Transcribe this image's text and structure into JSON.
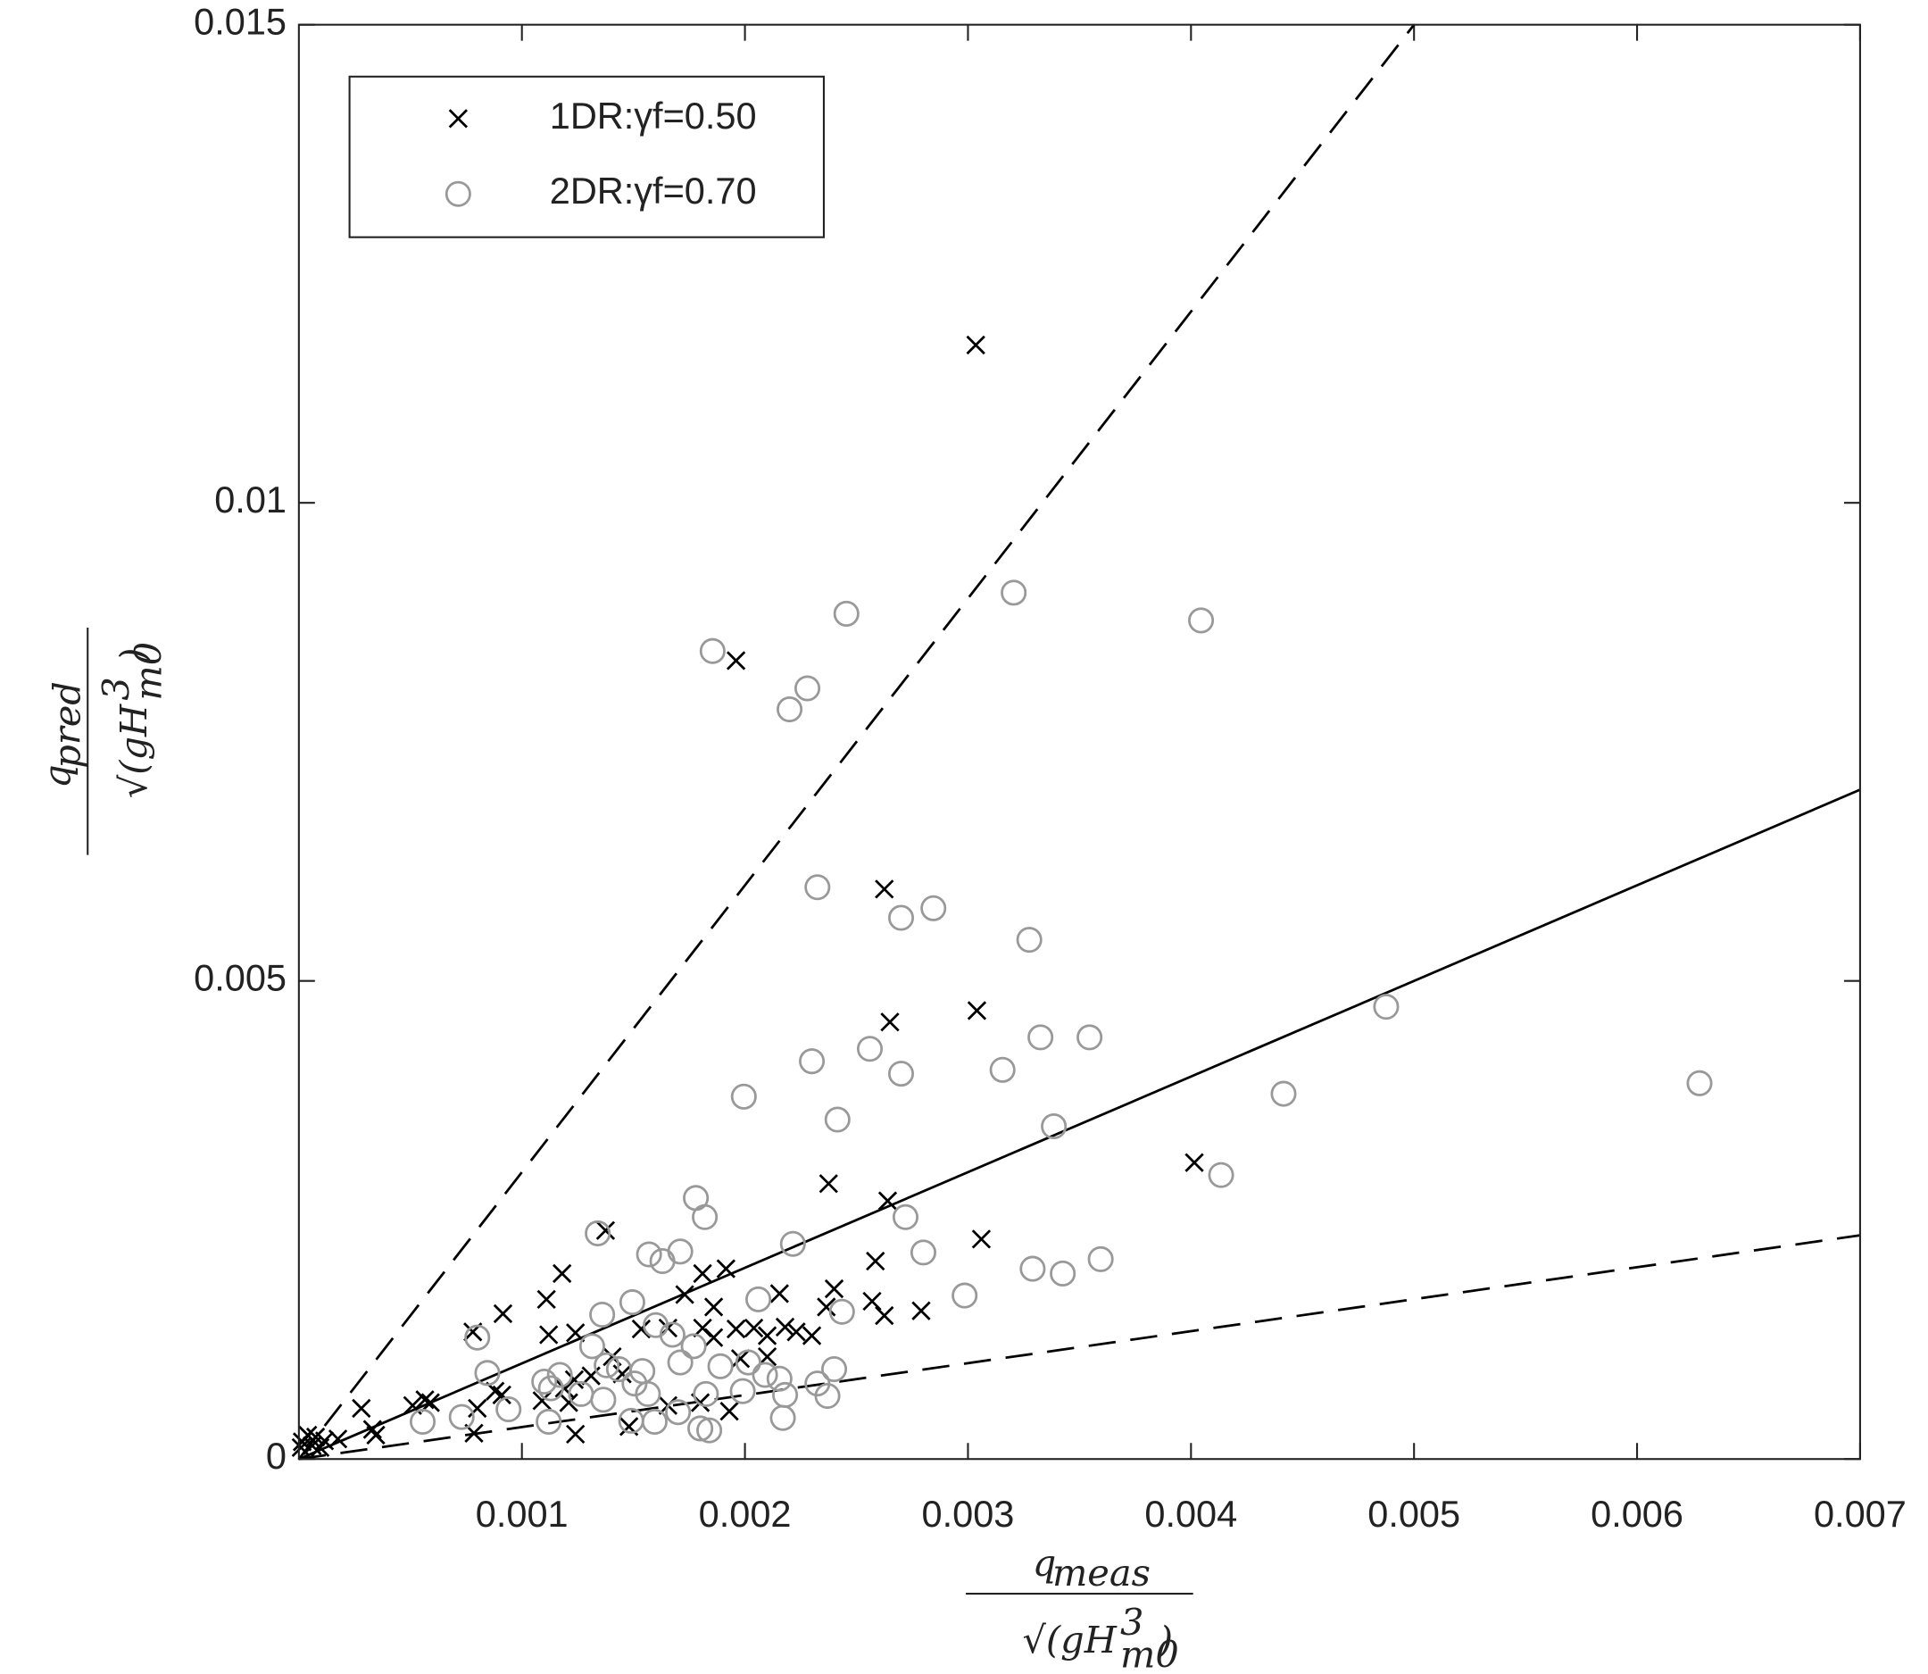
{
  "chart_data": {
    "type": "scatter",
    "xlim": [
      0,
      0.007
    ],
    "ylim": [
      0,
      0.015
    ],
    "xticks": [
      0.001,
      0.002,
      0.003,
      0.004,
      0.005,
      0.006,
      0.007
    ],
    "yticks": [
      0,
      0.005,
      0.01,
      0.015
    ],
    "legend_location": "upper left",
    "xlabel": {
      "numerator": "q",
      "numerator_sub": "meas",
      "denominator": "√(gH",
      "denominator_sup": "3",
      "denominator_sub": "m0",
      "denominator_end": ")"
    },
    "ylabel": {
      "numerator": "q",
      "numerator_sub": "pred",
      "denominator": "√(gH",
      "denominator_sup": "3",
      "denominator_sub": "m0",
      "denominator_end": ")"
    },
    "reference_lines": [
      {
        "x": [
          0,
          0.007
        ],
        "y": [
          0,
          0.007
        ],
        "style": "solid",
        "color": "#000000"
      },
      {
        "x": [
          0,
          0.005
        ],
        "y": [
          0,
          0.015
        ],
        "style": "dashed",
        "color": "#000000"
      },
      {
        "x": [
          0,
          0.007
        ],
        "y": [
          0,
          0.00234
        ],
        "style": "dashed",
        "color": "#000000"
      }
    ],
    "series": [
      {
        "name": "1DR:γf=0.50",
        "marker": "x",
        "color": "#000000",
        "x": [
          0.003035,
          0.00196,
          0.002625,
          0.00265,
          0.00304,
          0.004015,
          0.002375,
          0.00264,
          0.00306,
          0.001375,
          0.002585,
          0.001915,
          0.00118,
          0.00181,
          0.00111,
          0.002155,
          0.0024,
          0.00173,
          0.000915,
          0.00186,
          0.00257,
          0.002625,
          0.00279,
          0.002365,
          0.00078,
          0.00112,
          0.00124,
          0.001535,
          0.001655,
          0.00181,
          0.00186,
          0.00196,
          0.00204,
          0.0021,
          0.00218,
          0.00223,
          0.0023,
          0.00198,
          0.0021,
          0.001405,
          0.00145,
          0.00131,
          0.001235,
          0.00119,
          0.00109,
          0.00088,
          0.00091,
          0.0008,
          0.00059,
          0.000565,
          0.00051,
          0.00028,
          0.00033,
          0.000345,
          0.000785,
          0.00124,
          0.00148,
          0.001655,
          0.0018,
          0.00193,
          0.00121,
          0.000175,
          0.000115,
          7.5e-05,
          4e-05,
          1.5e-05,
          6e-05,
          1e-05,
          9.5e-05
        ],
        "values": [
          0.01165,
          0.00835,
          0.00596,
          0.00457,
          0.00469,
          0.0031,
          0.00288,
          0.0027,
          0.0023,
          0.00239,
          0.00207,
          0.00199,
          0.00194,
          0.00194,
          0.00167,
          0.00173,
          0.00178,
          0.00172,
          0.00152,
          0.00159,
          0.00165,
          0.0015,
          0.00155,
          0.00159,
          0.00133,
          0.0013,
          0.00132,
          0.00136,
          0.00137,
          0.00137,
          0.00127,
          0.00136,
          0.00137,
          0.00129,
          0.00138,
          0.00133,
          0.00129,
          0.00105,
          0.00107,
          0.00107,
          0.00089,
          0.00087,
          0.00083,
          0.00074,
          0.00061,
          0.00071,
          0.00067,
          0.00053,
          0.00059,
          0.00062,
          0.00056,
          0.00053,
          0.00031,
          0.00025,
          0.00027,
          0.00026,
          0.00034,
          0.00056,
          0.00059,
          0.0005,
          0.00059,
          0.00021,
          0.00019,
          0.00023,
          0.00025,
          0.00018,
          0.00014,
          0.00012,
          0.00012
        ]
      },
      {
        "name": "2DR:γf=0.70",
        "marker": "o",
        "color": "#999999",
        "x": [
          0.002455,
          0.003205,
          0.004045,
          0.001855,
          0.00228,
          0.0022,
          0.002325,
          0.0027,
          0.002845,
          0.003275,
          0.004875,
          0.003325,
          0.003545,
          0.00256,
          0.0023,
          0.003155,
          0.0027,
          0.001995,
          0.004415,
          0.00628,
          0.002415,
          0.003385,
          0.004135,
          0.00178,
          0.00182,
          0.00272,
          0.00134,
          0.002215,
          0.00171,
          0.00157,
          0.00163,
          0.0028,
          0.00329,
          0.003425,
          0.003595,
          0.002985,
          0.00136,
          0.001495,
          0.002435,
          0.00206,
          0.0008,
          0.001315,
          0.0016,
          0.001675,
          0.000845,
          0.0011,
          0.00117,
          0.00138,
          0.001435,
          0.00154,
          0.00171,
          0.00177,
          0.00189,
          0.002015,
          0.00209,
          0.002155,
          0.0024,
          0.002325,
          0.00237,
          0.00218,
          0.00199,
          0.001825,
          0.0017,
          0.001595,
          0.00149,
          0.001365,
          0.001265,
          0.00113,
          0.00094,
          0.00073,
          0.000555,
          0.00112,
          0.0018,
          0.00217,
          0.001505,
          0.001565,
          0.00184
        ],
        "values": [
          0.00884,
          0.00906,
          0.00877,
          0.00845,
          0.00806,
          0.00784,
          0.00598,
          0.00566,
          0.00576,
          0.00543,
          0.00473,
          0.00441,
          0.00441,
          0.00429,
          0.00416,
          0.00407,
          0.00403,
          0.00379,
          0.00382,
          0.00393,
          0.00355,
          0.00348,
          0.00297,
          0.00273,
          0.00253,
          0.00253,
          0.00236,
          0.00225,
          0.00217,
          0.00214,
          0.00207,
          0.00216,
          0.00199,
          0.00194,
          0.00209,
          0.00171,
          0.00151,
          0.00164,
          0.00154,
          0.00167,
          0.00127,
          0.00118,
          0.0014,
          0.0013,
          0.0009,
          0.00081,
          0.00088,
          0.00098,
          0.00094,
          0.00092,
          0.00101,
          0.00118,
          0.00097,
          0.00101,
          0.00088,
          0.00084,
          0.00094,
          0.00079,
          0.00066,
          0.00067,
          0.00071,
          0.00068,
          0.00049,
          0.00039,
          0.0004,
          0.00062,
          0.00068,
          0.00074,
          0.00052,
          0.00044,
          0.00039,
          0.00039,
          0.00032,
          0.00043,
          0.00079,
          0.00068,
          0.0003
        ]
      }
    ]
  }
}
